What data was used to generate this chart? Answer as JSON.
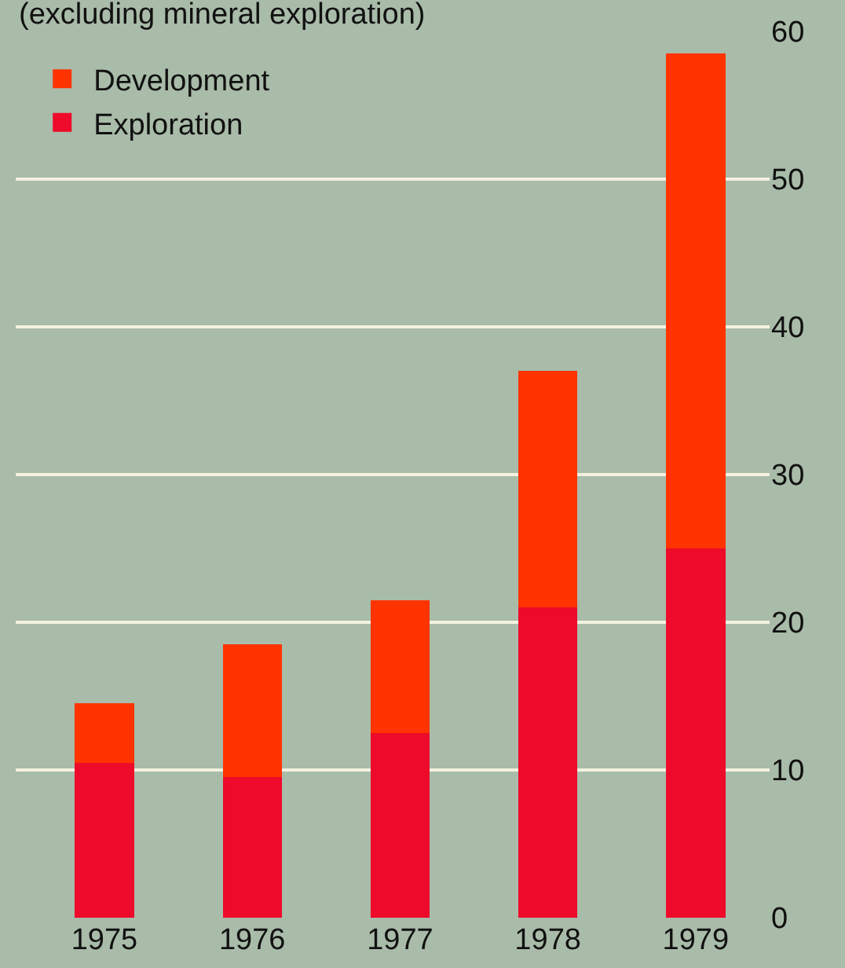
{
  "chart_data": {
    "type": "bar",
    "subtitle": "(excluding mineral exploration)",
    "categories": [
      "1975",
      "1976",
      "1977",
      "1978",
      "1979"
    ],
    "stacked": true,
    "series": [
      {
        "name": "Exploration",
        "color": "#ee0a2a",
        "values": [
          10.5,
          9.5,
          12.5,
          21,
          25
        ]
      },
      {
        "name": "Development",
        "color": "#ff3300",
        "values": [
          4,
          9,
          9,
          16,
          33.5
        ]
      }
    ],
    "ylim": [
      0,
      60
    ],
    "yticks": [
      0,
      10,
      20,
      30,
      40,
      50,
      60
    ],
    "grid": "y",
    "legend": "top left"
  }
}
